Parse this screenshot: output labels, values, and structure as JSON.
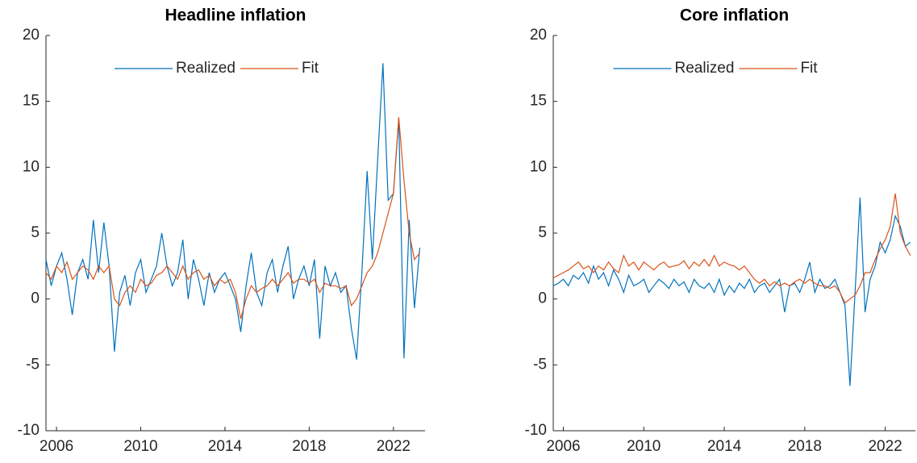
{
  "chart_data": [
    {
      "type": "line",
      "title": "Headline inflation",
      "x": [
        2005.5,
        2005.75,
        2006,
        2006.25,
        2006.5,
        2006.75,
        2007,
        2007.25,
        2007.5,
        2007.75,
        2008,
        2008.25,
        2008.5,
        2008.75,
        2009,
        2009.25,
        2009.5,
        2009.75,
        2010,
        2010.25,
        2010.5,
        2010.75,
        2011,
        2011.25,
        2011.5,
        2011.75,
        2012,
        2012.25,
        2012.5,
        2012.75,
        2013,
        2013.25,
        2013.5,
        2013.75,
        2014,
        2014.25,
        2014.5,
        2014.75,
        2015,
        2015.25,
        2015.5,
        2015.75,
        2016,
        2016.25,
        2016.5,
        2016.75,
        2017,
        2017.25,
        2017.5,
        2017.75,
        2018,
        2018.25,
        2018.5,
        2018.75,
        2019,
        2019.25,
        2019.5,
        2019.75,
        2020,
        2020.25,
        2020.5,
        2020.75,
        2021,
        2021.25,
        2021.5,
        2021.75,
        2022,
        2022.25,
        2022.5,
        2022.75,
        2023,
        2023.25
      ],
      "series": [
        {
          "name": "Realized",
          "color": "#0072bd",
          "values": [
            3.0,
            1.0,
            2.5,
            3.5,
            1.5,
            -1.2,
            2.0,
            3.0,
            1.5,
            6.0,
            2.0,
            5.8,
            2.5,
            -4.0,
            0.5,
            1.8,
            -0.5,
            2.0,
            3.0,
            0.5,
            1.5,
            2.5,
            5.0,
            2.5,
            1.0,
            2.0,
            4.5,
            0.0,
            3.0,
            1.5,
            -0.5,
            2.0,
            0.5,
            1.5,
            2.0,
            1.0,
            0.0,
            -2.5,
            1.0,
            3.5,
            0.5,
            -0.5,
            2.0,
            3.0,
            0.5,
            2.5,
            4.0,
            0.0,
            1.5,
            2.5,
            1.0,
            3.0,
            -3.0,
            2.5,
            1.0,
            2.0,
            0.5,
            1.0,
            -2.2,
            -4.6,
            2.0,
            9.7,
            3.0,
            10.6,
            17.9,
            7.5,
            8.0,
            13.7,
            -4.5,
            6.0,
            -0.7,
            3.9
          ]
        },
        {
          "name": "Fit",
          "color": "#d95319",
          "values": [
            2.0,
            1.5,
            2.5,
            2.0,
            2.8,
            1.5,
            2.0,
            2.5,
            2.2,
            1.5,
            2.5,
            2.0,
            2.5,
            0.0,
            -0.5,
            0.5,
            1.0,
            0.5,
            1.5,
            1.0,
            1.2,
            1.8,
            2.0,
            2.5,
            2.0,
            1.5,
            2.5,
            1.5,
            2.0,
            2.2,
            1.5,
            1.8,
            1.0,
            1.5,
            1.2,
            1.5,
            0.5,
            -1.5,
            0.0,
            1.0,
            0.5,
            0.8,
            1.0,
            1.5,
            1.0,
            1.5,
            2.0,
            1.2,
            1.5,
            1.5,
            1.2,
            1.5,
            0.5,
            1.2,
            1.0,
            1.0,
            0.8,
            1.0,
            -0.5,
            0.0,
            1.0,
            2.0,
            2.5,
            3.5,
            5.0,
            6.5,
            8.0,
            13.8,
            9.0,
            5.0,
            3.0,
            3.5
          ]
        }
      ],
      "xlim": [
        2005.5,
        2023.5
      ],
      "ylim": [
        -10,
        20
      ],
      "xticks": [
        2006,
        2010,
        2014,
        2018,
        2022
      ],
      "yticks": [
        -10,
        -5,
        0,
        5,
        10,
        15,
        20
      ],
      "legend": "north"
    },
    {
      "type": "line",
      "title": "Core inflation",
      "x": [
        2005.5,
        2005.75,
        2006,
        2006.25,
        2006.5,
        2006.75,
        2007,
        2007.25,
        2007.5,
        2007.75,
        2008,
        2008.25,
        2008.5,
        2008.75,
        2009,
        2009.25,
        2009.5,
        2009.75,
        2010,
        2010.25,
        2010.5,
        2010.75,
        2011,
        2011.25,
        2011.5,
        2011.75,
        2012,
        2012.25,
        2012.5,
        2012.75,
        2013,
        2013.25,
        2013.5,
        2013.75,
        2014,
        2014.25,
        2014.5,
        2014.75,
        2015,
        2015.25,
        2015.5,
        2015.75,
        2016,
        2016.25,
        2016.5,
        2016.75,
        2017,
        2017.25,
        2017.5,
        2017.75,
        2018,
        2018.25,
        2018.5,
        2018.75,
        2019,
        2019.25,
        2019.5,
        2019.75,
        2020,
        2020.25,
        2020.5,
        2020.75,
        2021,
        2021.25,
        2021.5,
        2021.75,
        2022,
        2022.25,
        2022.5,
        2022.75,
        2023,
        2023.25
      ],
      "series": [
        {
          "name": "Realized",
          "color": "#0072bd",
          "values": [
            1.0,
            1.2,
            1.5,
            1.0,
            1.8,
            1.5,
            2.0,
            1.2,
            2.5,
            1.5,
            2.0,
            1.0,
            2.2,
            1.5,
            0.5,
            1.8,
            1.0,
            1.2,
            1.5,
            0.5,
            1.0,
            1.5,
            1.2,
            0.8,
            1.5,
            1.0,
            1.3,
            0.5,
            1.5,
            1.0,
            0.8,
            1.2,
            0.5,
            1.5,
            0.3,
            1.0,
            0.5,
            1.2,
            0.8,
            1.5,
            0.5,
            1.0,
            1.2,
            0.5,
            1.0,
            1.5,
            -1.0,
            1.0,
            1.2,
            0.5,
            1.5,
            2.8,
            0.5,
            1.5,
            0.8,
            1.0,
            1.5,
            0.5,
            -0.5,
            -6.6,
            0.5,
            7.7,
            -1.0,
            1.5,
            2.5,
            4.3,
            3.5,
            4.5,
            6.3,
            5.5,
            4.0,
            4.3
          ]
        },
        {
          "name": "Fit",
          "color": "#d95319",
          "values": [
            1.6,
            1.8,
            2.0,
            2.2,
            2.5,
            2.8,
            2.3,
            2.5,
            2.0,
            2.5,
            2.2,
            2.8,
            2.3,
            2.0,
            3.3,
            2.5,
            2.8,
            2.2,
            2.8,
            2.5,
            2.2,
            2.6,
            2.8,
            2.4,
            2.5,
            2.6,
            2.9,
            2.3,
            2.8,
            2.5,
            3.0,
            2.5,
            3.3,
            2.5,
            2.8,
            2.6,
            2.5,
            2.2,
            2.5,
            2.0,
            1.5,
            1.2,
            1.5,
            1.0,
            1.3,
            1.0,
            1.2,
            1.0,
            1.3,
            1.5,
            1.2,
            1.5,
            1.2,
            1.0,
            1.0,
            0.8,
            1.0,
            0.5,
            -0.3,
            0.0,
            0.3,
            1.0,
            2.0,
            2.0,
            3.0,
            3.8,
            4.5,
            5.5,
            8.0,
            5.0,
            4.0,
            3.3
          ]
        }
      ],
      "xlim": [
        2005.5,
        2023.5
      ],
      "ylim": [
        -10,
        20
      ],
      "xticks": [
        2006,
        2010,
        2014,
        2018,
        2022
      ],
      "yticks": [
        -10,
        -5,
        0,
        5,
        10,
        15,
        20
      ],
      "legend": "north"
    }
  ]
}
